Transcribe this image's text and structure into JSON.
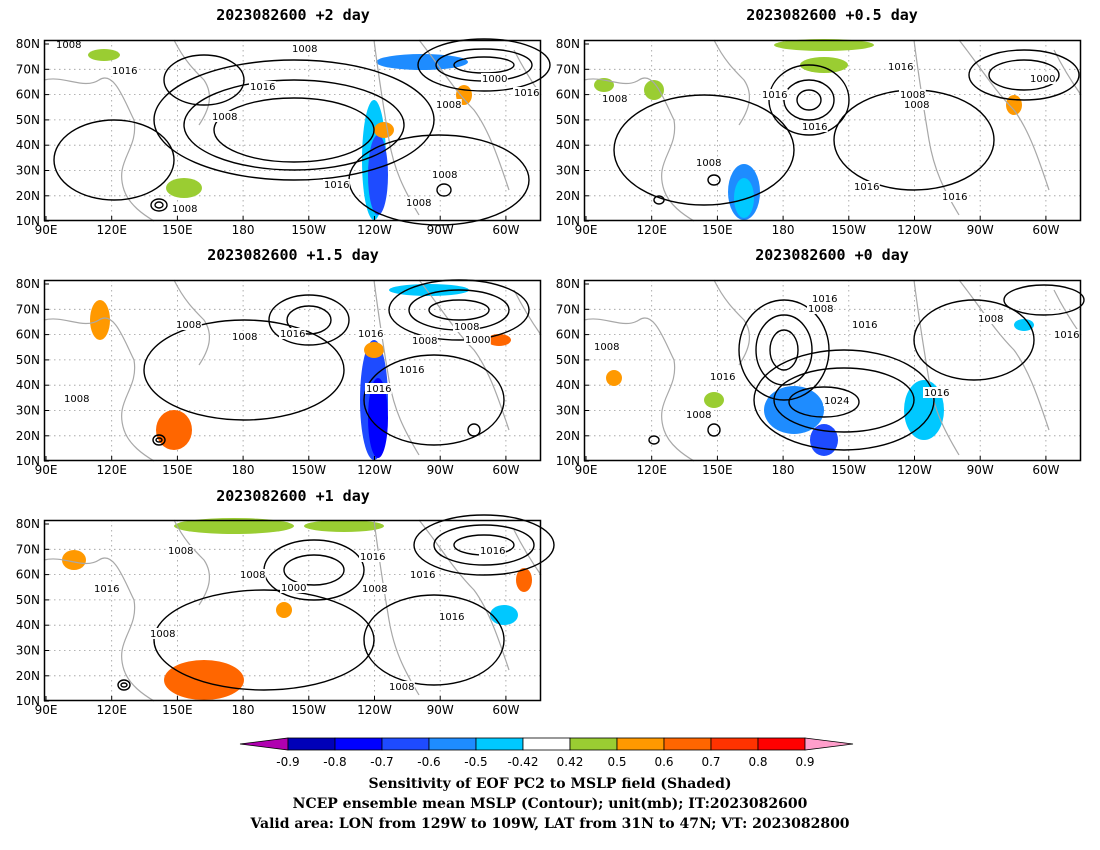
{
  "panels": [
    {
      "id": "p1",
      "title": "2023082600 +2 day"
    },
    {
      "id": "p2",
      "title": "2023082600 +0.5 day"
    },
    {
      "id": "p3",
      "title": "2023082600 +1.5 day"
    },
    {
      "id": "p4",
      "title": "2023082600 +0 day"
    },
    {
      "id": "p5",
      "title": "2023082600 +1 day"
    }
  ],
  "axes": {
    "lat_labels": [
      "80N",
      "70N",
      "60N",
      "50N",
      "40N",
      "30N",
      "20N",
      "10N"
    ],
    "lon_labels": [
      "90E",
      "120E",
      "150E",
      "180",
      "150W",
      "120W",
      "90W",
      "60W"
    ]
  },
  "contour_labels": {
    "p1": [
      "1008",
      "1016",
      "1008",
      "1016",
      "1008",
      "1000",
      "1016",
      "1008",
      "1016",
      "1008",
      "1008",
      "1008"
    ],
    "p2": [
      "1016",
      "1000",
      "1008",
      "1016",
      "1008",
      "1008",
      "1016",
      "1008",
      "1016",
      "1016"
    ],
    "p3": [
      "1008",
      "1016",
      "1008",
      "1008",
      "1000",
      "1016",
      "1008",
      "1016",
      "1016",
      "1008"
    ],
    "p4": [
      "1016",
      "1008",
      "1016",
      "1008",
      "1008",
      "1016",
      "1024",
      "1016",
      "1008",
      "1016"
    ],
    "p5": [
      "1008",
      "1016",
      "1016",
      "1008",
      "1000",
      "1016",
      "1008",
      "1016",
      "1016",
      "1008",
      "1008"
    ]
  },
  "colorbar": {
    "tick_labels": [
      "-0.9",
      "-0.8",
      "-0.7",
      "-0.6",
      "-0.5",
      "-0.42",
      "0.42",
      "0.5",
      "0.6",
      "0.7",
      "0.8",
      "0.9"
    ],
    "colors": [
      "#b000b0",
      "#0000b8",
      "#0000ff",
      "#1e4bff",
      "#1e8cff",
      "#00c8ff",
      "#ffffff",
      "#9acd32",
      "#ff9900",
      "#ff6600",
      "#ff3300",
      "#ff0000",
      "#ff9ecb"
    ]
  },
  "caption": {
    "line1": "Sensitivity of EOF PC2 to MSLP field (Shaded)",
    "line2": "NCEP ensemble mean MSLP (Contour); unit(mb); IT:2023082600",
    "line3": "Valid area: LON from 129W to 109W, LAT from 31N to 47N; VT: 2023082800"
  }
}
